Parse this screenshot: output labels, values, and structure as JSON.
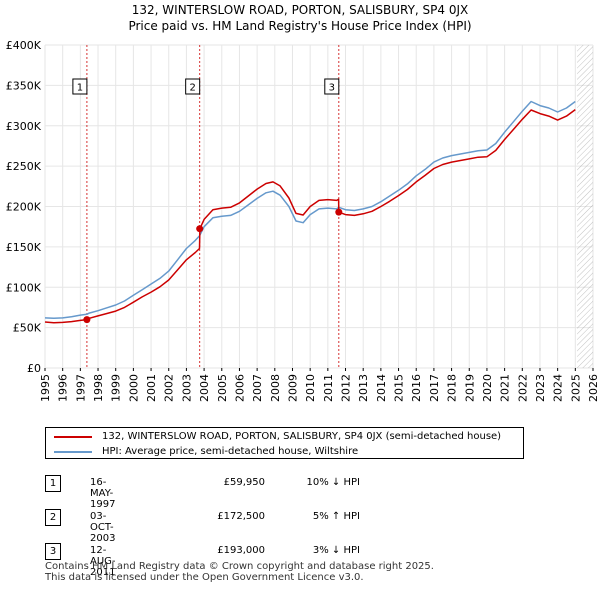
{
  "title_line1": "132, WINTERSLOW ROAD, PORTON, SALISBURY, SP4 0JX",
  "title_line2": "Price paid vs. HM Land Registry's House Price Index (HPI)",
  "colors": {
    "price": "#cc0000",
    "hpi": "#6699cc",
    "grid": "#e6e6e6",
    "marker_line": "#cc0000",
    "hatch": "#999999"
  },
  "legend": {
    "price_label": "132, WINTERSLOW ROAD, PORTON, SALISBURY, SP4 0JX (semi-detached house)",
    "hpi_label": "HPI: Average price, semi-detached house, Wiltshire"
  },
  "transactions": [
    {
      "num": "1",
      "date": "16-MAY-1997",
      "price": "£59,950",
      "hpi": "10% ↓ HPI"
    },
    {
      "num": "2",
      "date": "03-OCT-2003",
      "price": "£172,500",
      "hpi": "5% ↑ HPI"
    },
    {
      "num": "3",
      "date": "12-AUG-2011",
      "price": "£193,000",
      "hpi": "3% ↓ HPI"
    }
  ],
  "footer_line1": "Contains HM Land Registry data © Crown copyright and database right 2025.",
  "footer_line2": "This data is licensed under the Open Government Licence v3.0.",
  "chart_data": {
    "type": "line",
    "title": "Price paid vs. HM Land Registry's House Price Index (HPI)",
    "xlabel": "",
    "ylabel": "",
    "xlim": [
      1995,
      2026
    ],
    "ylim": [
      0,
      400000
    ],
    "x_ticks": [
      1995,
      1996,
      1997,
      1998,
      1999,
      2000,
      2001,
      2002,
      2003,
      2004,
      2005,
      2006,
      2007,
      2008,
      2009,
      2010,
      2011,
      2012,
      2013,
      2014,
      2015,
      2016,
      2017,
      2018,
      2019,
      2020,
      2021,
      2022,
      2023,
      2024,
      2025,
      2026
    ],
    "y_ticks": [
      {
        "value": 0,
        "label": "£0"
      },
      {
        "value": 50000,
        "label": "£50K"
      },
      {
        "value": 100000,
        "label": "£100K"
      },
      {
        "value": 150000,
        "label": "£150K"
      },
      {
        "value": 200000,
        "label": "£200K"
      },
      {
        "value": 250000,
        "label": "£250K"
      },
      {
        "value": 300000,
        "label": "£300K"
      },
      {
        "value": 350000,
        "label": "£350K"
      },
      {
        "value": 400000,
        "label": "£400K"
      }
    ],
    "grid": true,
    "forecast_start": 2025.1,
    "series": [
      {
        "name": "HPI: Average price, semi-detached house, Wiltshire",
        "color": "#6699cc",
        "points": [
          [
            1995.0,
            62000
          ],
          [
            1995.5,
            61500
          ],
          [
            1996.0,
            62000
          ],
          [
            1996.5,
            63500
          ],
          [
            1997.0,
            65500
          ],
          [
            1997.37,
            66500
          ],
          [
            1997.5,
            68000
          ],
          [
            1998.0,
            71000
          ],
          [
            1998.5,
            74500
          ],
          [
            1999.0,
            78000
          ],
          [
            1999.5,
            83000
          ],
          [
            2000.0,
            90000
          ],
          [
            2000.5,
            97000
          ],
          [
            2001.0,
            104000
          ],
          [
            2001.5,
            111000
          ],
          [
            2002.0,
            120000
          ],
          [
            2002.5,
            134000
          ],
          [
            2003.0,
            148000
          ],
          [
            2003.5,
            158000
          ],
          [
            2003.75,
            164000
          ],
          [
            2004.0,
            175000
          ],
          [
            2004.5,
            186000
          ],
          [
            2005.0,
            188000
          ],
          [
            2005.5,
            189000
          ],
          [
            2006.0,
            194000
          ],
          [
            2006.5,
            202000
          ],
          [
            2007.0,
            210000
          ],
          [
            2007.5,
            217000
          ],
          [
            2007.9,
            219000
          ],
          [
            2008.3,
            214000
          ],
          [
            2008.8,
            200000
          ],
          [
            2009.2,
            182000
          ],
          [
            2009.6,
            180000
          ],
          [
            2010.0,
            190000
          ],
          [
            2010.5,
            197000
          ],
          [
            2011.0,
            198000
          ],
          [
            2011.5,
            197000
          ],
          [
            2011.62,
            199000
          ],
          [
            2012.0,
            196000
          ],
          [
            2012.5,
            195000
          ],
          [
            2013.0,
            197000
          ],
          [
            2013.5,
            200000
          ],
          [
            2014.0,
            206000
          ],
          [
            2014.5,
            213000
          ],
          [
            2015.0,
            220000
          ],
          [
            2015.5,
            228000
          ],
          [
            2016.0,
            238000
          ],
          [
            2016.5,
            246000
          ],
          [
            2017.0,
            255000
          ],
          [
            2017.5,
            260000
          ],
          [
            2018.0,
            263000
          ],
          [
            2018.5,
            265000
          ],
          [
            2019.0,
            267000
          ],
          [
            2019.5,
            269000
          ],
          [
            2020.0,
            270000
          ],
          [
            2020.5,
            278000
          ],
          [
            2021.0,
            292000
          ],
          [
            2021.5,
            305000
          ],
          [
            2022.0,
            318000
          ],
          [
            2022.5,
            330000
          ],
          [
            2023.0,
            325000
          ],
          [
            2023.5,
            322000
          ],
          [
            2024.0,
            317000
          ],
          [
            2024.5,
            322000
          ],
          [
            2025.0,
            330000
          ]
        ]
      },
      {
        "name": "132, WINTERSLOW ROAD, PORTON, SALISBURY, SP4 0JX (semi-detached house)",
        "color": "#cc0000",
        "points": [
          [
            1995.0,
            57000
          ],
          [
            1995.5,
            56000
          ],
          [
            1996.0,
            56500
          ],
          [
            1996.5,
            57500
          ],
          [
            1997.0,
            59000
          ],
          [
            1997.37,
            59950
          ],
          [
            1997.5,
            61500
          ],
          [
            1998.0,
            64500
          ],
          [
            1998.5,
            67500
          ],
          [
            1999.0,
            70500
          ],
          [
            1999.5,
            75000
          ],
          [
            2000.0,
            81500
          ],
          [
            2000.5,
            88000
          ],
          [
            2001.0,
            94000
          ],
          [
            2001.5,
            100500
          ],
          [
            2002.0,
            109000
          ],
          [
            2002.5,
            121500
          ],
          [
            2003.0,
            134000
          ],
          [
            2003.5,
            143000
          ],
          [
            2003.74,
            148000
          ],
          [
            2003.76,
            172500
          ],
          [
            2004.0,
            184000
          ],
          [
            2004.5,
            196000
          ],
          [
            2005.0,
            198000
          ],
          [
            2005.5,
            199000
          ],
          [
            2006.0,
            204500
          ],
          [
            2006.5,
            213000
          ],
          [
            2007.0,
            221500
          ],
          [
            2007.5,
            228500
          ],
          [
            2007.9,
            230500
          ],
          [
            2008.3,
            225500
          ],
          [
            2008.8,
            210500
          ],
          [
            2009.2,
            191500
          ],
          [
            2009.6,
            189500
          ],
          [
            2010.0,
            200000
          ],
          [
            2010.5,
            207500
          ],
          [
            2011.0,
            208500
          ],
          [
            2011.5,
            207500
          ],
          [
            2011.61,
            209000
          ],
          [
            2011.62,
            193000
          ],
          [
            2012.0,
            190000
          ],
          [
            2012.5,
            189000
          ],
          [
            2013.0,
            191000
          ],
          [
            2013.5,
            194000
          ],
          [
            2014.0,
            200000
          ],
          [
            2014.5,
            206500
          ],
          [
            2015.0,
            213500
          ],
          [
            2015.5,
            221000
          ],
          [
            2016.0,
            230500
          ],
          [
            2016.5,
            238500
          ],
          [
            2017.0,
            247000
          ],
          [
            2017.5,
            252000
          ],
          [
            2018.0,
            255000
          ],
          [
            2018.5,
            257000
          ],
          [
            2019.0,
            259000
          ],
          [
            2019.5,
            261000
          ],
          [
            2020.0,
            261500
          ],
          [
            2020.5,
            269500
          ],
          [
            2021.0,
            283000
          ],
          [
            2021.5,
            295500
          ],
          [
            2022.0,
            308000
          ],
          [
            2022.5,
            319500
          ],
          [
            2023.0,
            315000
          ],
          [
            2023.5,
            312000
          ],
          [
            2024.0,
            307000
          ],
          [
            2024.5,
            312000
          ],
          [
            2025.0,
            320000
          ]
        ]
      }
    ],
    "sales": [
      {
        "label": "1",
        "x": 1997.37,
        "y": 59950
      },
      {
        "label": "2",
        "x": 2003.75,
        "y": 172500
      },
      {
        "label": "3",
        "x": 2011.62,
        "y": 193000
      }
    ]
  }
}
